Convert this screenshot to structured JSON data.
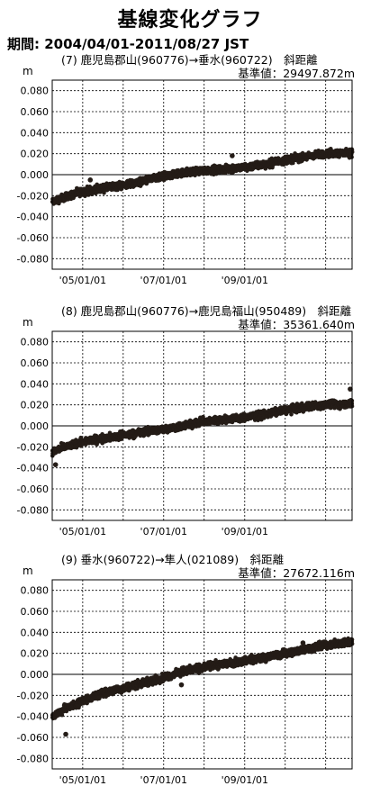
{
  "title": "基線変化グラフ",
  "period": "期間: 2004/04/01-2011/08/27 JST",
  "unit": "m",
  "chart_data": [
    {
      "type": "scatter",
      "title": "(7) 鹿児島郡山(960776)→垂水(960722)　斜距離",
      "reference": "基準値：29497.872m",
      "ylabel": "m",
      "ylim": [
        -0.09,
        0.09
      ],
      "yticks": [
        "0.080",
        "0.060",
        "0.040",
        "0.020",
        "0.000",
        "-0.020",
        "-0.040",
        "-0.060",
        "-0.080"
      ],
      "xrange": [
        "2004-04-01",
        "2011-08-27"
      ],
      "xticks": [
        "'05/01/01",
        "'07/01/01",
        "'09/01/01"
      ],
      "grid": true,
      "x": [
        "2004-04-01",
        "2004-07-01",
        "2005-01-01",
        "2005-07-01",
        "2006-01-01",
        "2006-07-01",
        "2007-01-01",
        "2007-07-01",
        "2008-01-01",
        "2008-07-01",
        "2009-01-01",
        "2009-07-01",
        "2010-01-01",
        "2010-07-01",
        "2011-01-01",
        "2011-08-27"
      ],
      "y": [
        -0.026,
        -0.022,
        -0.016,
        -0.013,
        -0.01,
        -0.006,
        -0.002,
        0.002,
        0.004,
        0.005,
        0.007,
        0.01,
        0.014,
        0.017,
        0.02,
        0.021
      ],
      "outliers": [
        {
          "x": "2005-03-10",
          "y": -0.005
        },
        {
          "x": "2008-09-10",
          "y": 0.018
        }
      ]
    },
    {
      "type": "scatter",
      "title": "(8) 鹿児島郡山(960776)→鹿児島福山(950489)　斜距離",
      "reference": "基準値：35361.640m",
      "ylabel": "m",
      "ylim": [
        -0.09,
        0.09
      ],
      "yticks": [
        "0.080",
        "0.060",
        "0.040",
        "0.020",
        "0.000",
        "-0.020",
        "-0.040",
        "-0.060",
        "-0.080"
      ],
      "xrange": [
        "2004-04-01",
        "2011-08-27"
      ],
      "xticks": [
        "'05/01/01",
        "'07/01/01",
        "'09/01/01"
      ],
      "grid": true,
      "x": [
        "2004-04-01",
        "2004-07-01",
        "2005-01-01",
        "2005-07-01",
        "2006-01-01",
        "2006-07-01",
        "2007-01-01",
        "2007-07-01",
        "2008-01-01",
        "2008-07-01",
        "2009-01-01",
        "2009-07-01",
        "2010-01-01",
        "2010-07-01",
        "2011-01-01",
        "2011-08-27"
      ],
      "y": [
        -0.025,
        -0.021,
        -0.015,
        -0.012,
        -0.009,
        -0.006,
        -0.003,
        0.0,
        0.004,
        0.006,
        0.008,
        0.011,
        0.015,
        0.018,
        0.02,
        0.021
      ],
      "outliers": [
        {
          "x": "2004-05-01",
          "y": -0.037
        },
        {
          "x": "2011-08-10",
          "y": 0.035
        }
      ]
    },
    {
      "type": "scatter",
      "title": "(9) 垂水(960722)→隼人(021089)　斜距離",
      "reference": "基準値：27672.116m",
      "ylabel": "m",
      "ylim": [
        -0.09,
        0.09
      ],
      "yticks": [
        "0.080",
        "0.060",
        "0.040",
        "0.020",
        "0.000",
        "-0.020",
        "-0.040",
        "-0.060",
        "-0.080"
      ],
      "xrange": [
        "2004-04-01",
        "2011-08-27"
      ],
      "xticks": [
        "'05/01/01",
        "'07/01/01",
        "'09/01/01"
      ],
      "grid": true,
      "x": [
        "2004-04-01",
        "2004-07-01",
        "2005-01-01",
        "2005-07-01",
        "2006-01-01",
        "2006-07-01",
        "2007-01-01",
        "2007-07-01",
        "2008-01-01",
        "2008-07-01",
        "2009-01-01",
        "2009-07-01",
        "2010-01-01",
        "2010-07-01",
        "2011-01-01",
        "2011-08-27"
      ],
      "y": [
        -0.04,
        -0.034,
        -0.025,
        -0.018,
        -0.013,
        -0.008,
        -0.003,
        0.003,
        0.007,
        0.01,
        0.013,
        0.016,
        0.02,
        0.024,
        0.028,
        0.031
      ],
      "outliers": [
        {
          "x": "2004-08-01",
          "y": -0.057
        },
        {
          "x": "2007-06-10",
          "y": -0.01
        },
        {
          "x": "2010-06-10",
          "y": 0.03
        }
      ]
    }
  ]
}
